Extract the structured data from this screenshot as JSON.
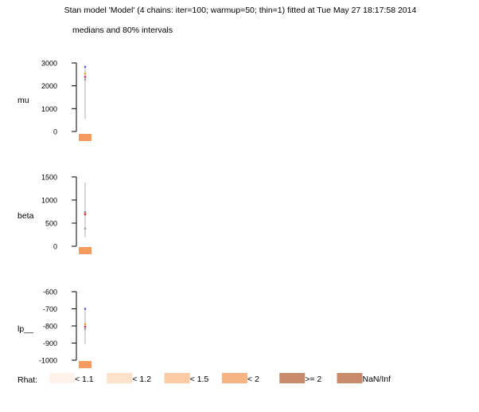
{
  "header": {
    "title": "Stan model 'Model' (4 chains: iter=100; warmup=50; thin=1) fitted at Tue May 27 18:17:58 2014",
    "subtitle": "medians and 80% intervals"
  },
  "chart_data": [
    {
      "type": "interval",
      "parameter": "mu",
      "ylim": [
        0,
        3000
      ],
      "ticks": [
        0,
        1000,
        2000,
        3000
      ],
      "interval": [
        550,
        2850
      ],
      "chain_medians": [
        2830,
        2530,
        2390,
        2270
      ],
      "rhat_color": "#f79a5e"
    },
    {
      "type": "interval",
      "parameter": "beta",
      "ylim": [
        0,
        1500
      ],
      "ticks": [
        0,
        500,
        1000,
        1500
      ],
      "interval": [
        200,
        1380
      ],
      "chain_medians": [
        730,
        710,
        690,
        380
      ],
      "rhat_color": "#f79a5e"
    },
    {
      "type": "interval",
      "parameter": "lp__",
      "ylim": [
        -1000,
        -600
      ],
      "ticks": [
        -1000,
        -900,
        -800,
        -700,
        -600
      ],
      "interval": [
        -905,
        -700
      ],
      "chain_medians": [
        -700,
        -790,
        -805,
        -818
      ],
      "rhat_color": "#f79a5e"
    }
  ],
  "colors": {
    "interval_line": "#c4c4c4",
    "chain_colors": [
      "#5e5ec8",
      "#f0a020",
      "#c83264",
      "#a0a0a0"
    ]
  },
  "legend": {
    "title": "Rhat:",
    "items": [
      {
        "label": "< 1.1",
        "color": "#fdf3ea"
      },
      {
        "label": "< 1.2",
        "color": "#fce2cb"
      },
      {
        "label": "< 1.5",
        "color": "#fbcba5"
      },
      {
        "label": "< 2",
        "color": "#f7b384"
      },
      {
        "label": ">= 2",
        "color": "#c98a6c"
      },
      {
        "label": "NaN/Inf",
        "color": "#c98a6c"
      }
    ]
  }
}
